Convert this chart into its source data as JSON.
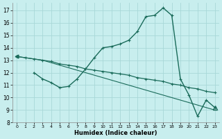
{
  "xlabel": "Humidex (Indice chaleur)",
  "background_color": "#c8eeee",
  "grid_color": "#a8d8d8",
  "line_color": "#1a6b5a",
  "xlim": [
    -0.5,
    23.5
  ],
  "ylim": [
    8,
    17.6
  ],
  "yticks": [
    8,
    9,
    10,
    11,
    12,
    13,
    14,
    15,
    16,
    17
  ],
  "xticks": [
    0,
    1,
    2,
    3,
    4,
    5,
    6,
    7,
    8,
    9,
    10,
    11,
    12,
    13,
    14,
    15,
    16,
    17,
    18,
    19,
    20,
    21,
    22,
    23
  ],
  "line1_x": [
    0,
    1,
    2,
    3,
    4,
    5,
    6,
    7,
    8,
    9,
    10,
    11,
    12,
    13,
    14,
    15,
    16,
    17,
    18,
    19,
    20,
    21,
    22,
    23
  ],
  "line1_y": [
    13.3,
    13.2,
    13.1,
    13.0,
    12.9,
    12.7,
    12.6,
    12.5,
    12.3,
    12.2,
    12.1,
    12.0,
    11.9,
    11.8,
    11.6,
    11.5,
    11.4,
    11.3,
    11.1,
    11.0,
    10.8,
    10.7,
    10.5,
    10.4
  ],
  "line2_x": [
    2,
    3,
    4,
    5,
    6,
    7,
    8,
    9,
    10,
    11,
    12,
    13,
    14,
    15,
    16,
    17,
    18,
    19,
    20,
    21,
    22,
    23
  ],
  "line2_y": [
    12.0,
    11.5,
    11.2,
    10.8,
    10.9,
    11.5,
    12.3,
    13.2,
    14.0,
    14.1,
    14.3,
    14.6,
    15.3,
    16.5,
    16.6,
    17.2,
    16.6,
    11.5,
    10.2,
    8.5,
    9.8,
    9.2
  ],
  "line3_x": [
    0,
    1,
    2,
    3,
    4,
    5,
    6,
    7,
    8,
    9,
    10,
    11,
    12,
    13,
    14,
    15,
    16,
    17,
    18,
    19,
    20,
    21,
    22,
    23
  ],
  "line3_y": [
    13.3,
    13.2,
    13.1,
    13.0,
    12.8,
    12.6,
    12.4,
    12.2,
    12.0,
    11.8,
    11.6,
    11.4,
    11.2,
    11.0,
    10.8,
    10.6,
    10.4,
    10.2,
    10.0,
    9.8,
    9.6,
    9.4,
    9.2,
    9.0
  ]
}
